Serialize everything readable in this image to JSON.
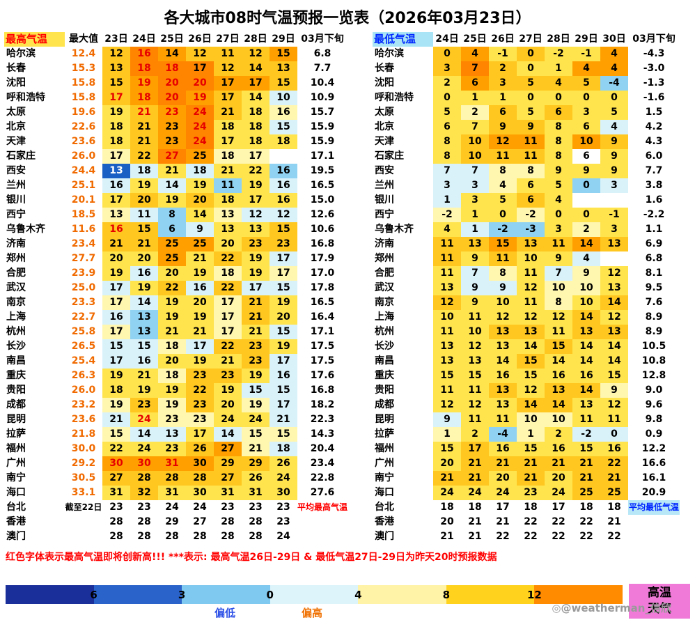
{
  "title": "各大城市08时气温预报一览表（2026年03月23日）",
  "note": "红色字体表示最高气温即将创新高!!! ***表示: 最高气温26日-29日 & 最低气温27日-29日为昨天20时预报数据",
  "watermark": "@weatherman_信欣",
  "hot_badge": {
    "lines": [
      "高温",
      "天气"
    ],
    "bg": "#F07AD8"
  },
  "legend": {
    "segment_colors": [
      "#1B2F9B",
      "#2A63C9",
      "#7FC8EF",
      "#DDF4FB",
      "#FFF3A8",
      "#FFD21E",
      "#FF8C00"
    ],
    "ticks": [
      "6",
      "3",
      "0",
      "4",
      "8",
      "12"
    ],
    "low_label": "偏低",
    "high_label": "偏高"
  },
  "cell_colors": {
    "db": "#1A5FC4",
    "lb": "#8FD2F2",
    "pc": "#D9F2FA",
    "w": "#FFFFFF",
    "py": "#FFF6B0",
    "y": "#FFE44D",
    "g": "#FFC71F",
    "o": "#FFA000",
    "oo": "#FF8400"
  },
  "chart_data": {
    "type": "heatmap",
    "max_table": {
      "header": {
        "label": "最高气温",
        "max_col": "最大值",
        "days": [
          "23日",
          "24日",
          "25日",
          "26日",
          "27日",
          "28日",
          "29日"
        ],
        "period": "03月下旬"
      },
      "rows": [
        {
          "city": "哈尔滨",
          "max": "12.4",
          "cells": [
            "12:g",
            "16:oo:r",
            "14:o",
            "12:g",
            "11:g",
            "12:g",
            "15:o"
          ],
          "avg": "6.8"
        },
        {
          "city": "长春",
          "max": "15.3",
          "cells": [
            "13:g",
            "18:oo:r",
            "18:oo:r",
            "17:oo",
            "12:g",
            "14:g",
            "13:g"
          ],
          "avg": "7.7"
        },
        {
          "city": "沈阳",
          "max": "15.8",
          "cells": [
            "15:g",
            "19:o:r",
            "20:oo:r",
            "20:oo:r",
            "17:o",
            "17:o",
            "15:g"
          ],
          "avg": "10.4"
        },
        {
          "city": "呼和浩特",
          "max": "15.8",
          "cells": [
            "17:g:r",
            "18:o:r",
            "20:oo:r",
            "19:o:r",
            "17:g",
            "14:y",
            "10:pc"
          ],
          "avg": "10.9"
        },
        {
          "city": "太原",
          "max": "19.6",
          "cells": [
            "19:y",
            "21:g:r",
            "23:o:r",
            "24:oo:r",
            "21:g",
            "18:y",
            "16:py"
          ],
          "avg": "15.7"
        },
        {
          "city": "北京",
          "max": "22.6",
          "cells": [
            "18:y",
            "21:g",
            "23:o",
            "24:oo:r",
            "18:y",
            "18:y",
            "15:pc"
          ],
          "avg": "15.9"
        },
        {
          "city": "天津",
          "max": "23.6",
          "cells": [
            "18:y",
            "21:g",
            "23:o",
            "24:oo:r",
            "17:y",
            "18:y",
            "18:y"
          ],
          "avg": "15.9"
        },
        {
          "city": "石家庄",
          "max": "26.0",
          "cells": [
            "17:py",
            "22:g",
            "27:oo:r",
            "25:o",
            "18:py",
            "17:py",
            ":w"
          ],
          "avg": "17.1"
        },
        {
          "city": "西安",
          "max": "24.4",
          "cells": [
            "13:db:w",
            "18:pc",
            "21:y",
            "18:pc",
            "21:y",
            "22:y",
            "16:lb"
          ],
          "avg": "19.5"
        },
        {
          "city": "兰州",
          "max": "25.1",
          "cells": [
            "16:pc",
            "19:y",
            "14:pc",
            "19:y",
            "11:lb",
            "19:y",
            "16:pc"
          ],
          "avg": "16.5"
        },
        {
          "city": "银川",
          "max": "20.1",
          "cells": [
            "17:y",
            "20:g",
            "19:y",
            "20:g",
            "18:y",
            "17:y",
            "16:y"
          ],
          "avg": "15.0"
        },
        {
          "city": "西宁",
          "max": "18.5",
          "cells": [
            "13:py",
            "11:pc",
            "8:lb",
            "14:y",
            "13:py",
            "12:pc",
            "12:pc"
          ],
          "avg": "12.6"
        },
        {
          "city": "乌鲁木齐",
          "max": "11.6",
          "cells": [
            "16:g:r",
            "15:g",
            "6:lb",
            "9:pc",
            "13:y",
            "13:y",
            "15:g"
          ],
          "avg": "10.6"
        },
        {
          "city": "济南",
          "max": "23.4",
          "cells": [
            "21:g",
            "21:g",
            "25:o",
            "25:o",
            "20:y",
            "23:g",
            "23:g"
          ],
          "avg": "16.8"
        },
        {
          "city": "郑州",
          "max": "27.7",
          "cells": [
            "20:y",
            "20:y",
            "25:o",
            "21:y",
            "22:g",
            "19:y",
            "17:pc"
          ],
          "avg": "17.9"
        },
        {
          "city": "合肥",
          "max": "23.9",
          "cells": [
            "19:y",
            "16:pc",
            "20:y",
            "19:y",
            "18:py",
            "19:y",
            "17:py"
          ],
          "avg": "17.0"
        },
        {
          "city": "武汉",
          "max": "25.0",
          "cells": [
            "17:pc",
            "19:y",
            "22:g",
            "16:pc",
            "22:g",
            "17:pc",
            "15:pc"
          ],
          "avg": "17.8"
        },
        {
          "city": "南京",
          "max": "23.3",
          "cells": [
            "17:py",
            "14:pc",
            "19:y",
            "20:y",
            "17:py",
            "21:g",
            "19:y"
          ],
          "avg": "16.5"
        },
        {
          "city": "上海",
          "max": "22.7",
          "cells": [
            "16:pc",
            "13:lb",
            "19:y",
            "19:y",
            "17:py",
            "21:g",
            "20:y"
          ],
          "avg": "16.4"
        },
        {
          "city": "杭州",
          "max": "25.8",
          "cells": [
            "17:py",
            "13:lb",
            "21:y",
            "21:y",
            "17:py",
            "21:y",
            "15:pc"
          ],
          "avg": "17.1"
        },
        {
          "city": "长沙",
          "max": "26.5",
          "cells": [
            "15:pc",
            "15:pc",
            "18:py",
            "17:pc",
            "22:g",
            "23:g",
            "19:y"
          ],
          "avg": "17.5"
        },
        {
          "city": "南昌",
          "max": "25.4",
          "cells": [
            "17:pc",
            "16:pc",
            "20:y",
            "19:y",
            "21:y",
            "23:g",
            "17:pc"
          ],
          "avg": "17.5"
        },
        {
          "city": "重庆",
          "max": "26.3",
          "cells": [
            "19:y",
            "21:y",
            "18:py",
            "23:g",
            "23:g",
            "19:y",
            "16:pc"
          ],
          "avg": "17.6"
        },
        {
          "city": "贵阳",
          "max": "26.0",
          "cells": [
            "18:y",
            "19:y",
            "19:y",
            "22:g",
            "19:y",
            "15:pc",
            "15:pc"
          ],
          "avg": "16.8"
        },
        {
          "city": "成都",
          "max": "23.2",
          "cells": [
            "19:py",
            "23:g",
            "19:py",
            "23:g",
            "20:y",
            "19:py",
            "17:pc"
          ],
          "avg": "18.2"
        },
        {
          "city": "昆明",
          "max": "23.6",
          "cells": [
            "21:pc",
            "24:y:r",
            "23:py",
            "23:py",
            "24:y",
            "24:y",
            "21:pc"
          ],
          "avg": "22.3"
        },
        {
          "city": "拉萨",
          "max": "21.8",
          "cells": [
            "15:py",
            "14:pc",
            "13:pc",
            "17:y",
            "14:pc",
            "15:py",
            "15:py"
          ],
          "avg": "14.3"
        },
        {
          "city": "福州",
          "max": "30.0",
          "cells": [
            "22:y",
            "24:y",
            "23:y",
            "26:g",
            "27:o",
            "21:py",
            "18:pc"
          ],
          "avg": "20.4"
        },
        {
          "city": "广州",
          "max": "29.2",
          "cells": [
            "30:o:r",
            "30:o:r",
            "31:o:r",
            "30:o",
            "29:g",
            "29:g",
            "26:y"
          ],
          "avg": "23.4"
        },
        {
          "city": "南宁",
          "max": "30.5",
          "cells": [
            "27:g",
            "28:g",
            "28:g",
            "28:g",
            "27:g",
            "26:y",
            "24:y"
          ],
          "avg": "22.8"
        },
        {
          "city": "海口",
          "max": "33.1",
          "cells": [
            "31:y",
            "32:g",
            "31:y",
            "30:y",
            "31:y",
            "31:y",
            "30:y"
          ],
          "avg": "27.6"
        },
        {
          "city": "台北",
          "max": "截至22日",
          "small": true,
          "cells": [
            "23:w",
            "23:w",
            "24:w",
            "24:w",
            "23:w",
            "23:w",
            "23:w"
          ],
          "avg": "平均最高气温",
          "avg_style": "red"
        },
        {
          "city": "香港",
          "max": "",
          "cells": [
            "28:w",
            "28:w",
            "29:w",
            "27:w",
            "28:w",
            "28:w",
            "23:w"
          ],
          "avg": ""
        },
        {
          "city": "澳门",
          "max": "",
          "cells": [
            "28:w",
            "28:w",
            "28:w",
            "28:w",
            "28:w",
            "28:w",
            "24:w"
          ],
          "avg": ""
        }
      ]
    },
    "min_table": {
      "header": {
        "label": "最低气温",
        "days": [
          "24日",
          "25日",
          "26日",
          "27日",
          "28日",
          "29日",
          "30日"
        ],
        "period": "03月下旬"
      },
      "rows": [
        {
          "city": "哈尔滨",
          "cells": [
            "0:g",
            "4:o",
            "-1:y",
            "0:g",
            "-2:y",
            "-1:y",
            "4:o"
          ],
          "avg": "-4.3"
        },
        {
          "city": "长春",
          "cells": [
            "3:g",
            "7:oo",
            "2:g",
            "0:y",
            "1:y",
            "4:o",
            "4:o"
          ],
          "avg": "-3.0"
        },
        {
          "city": "沈阳",
          "cells": [
            "2:y",
            "6:o",
            "3:g",
            "5:g",
            "4:g",
            "5:g",
            "-4:lb"
          ],
          "avg": "-1.3"
        },
        {
          "city": "呼和浩特",
          "cells": [
            "0:y",
            "1:y",
            "1:y",
            "0:y",
            "0:y",
            "0:y",
            "0:y"
          ],
          "avg": "-1.6"
        },
        {
          "city": "太原",
          "cells": [
            "5:y",
            "2:py",
            "6:g",
            "5:y",
            "6:g",
            "3:y",
            "5:y"
          ],
          "avg": "1.5"
        },
        {
          "city": "北京",
          "cells": [
            "6:y",
            "7:y",
            "9:g",
            "9:g",
            "8:y",
            "6:y",
            "4:pc"
          ],
          "avg": "4.2"
        },
        {
          "city": "天津",
          "cells": [
            "8:y",
            "10:g",
            "12:o",
            "11:o",
            "8:y",
            "10:o",
            "9:g"
          ],
          "avg": "4.3"
        },
        {
          "city": "石家庄",
          "cells": [
            "8:y",
            "10:g",
            "11:g",
            "11:g",
            "8:y",
            "6:w",
            "9:y"
          ],
          "avg": "6.0"
        },
        {
          "city": "西安",
          "cells": [
            "7:pc",
            "7:pc",
            "8:py",
            "8:py",
            "9:y",
            "9:y",
            "9:y"
          ],
          "avg": "7.7"
        },
        {
          "city": "兰州",
          "cells": [
            "3:pc",
            "3:pc",
            "4:py",
            "6:y",
            "5:y",
            "0:lb",
            "3:pc"
          ],
          "avg": "3.8"
        },
        {
          "city": "银川",
          "cells": [
            "1:pc",
            "3:y",
            "5:y",
            "6:g",
            "4:y",
            ":w",
            ":w"
          ],
          "avg": "1.6"
        },
        {
          "city": "西宁",
          "cells": [
            "-2:py",
            "1:y",
            "0:y",
            "-2:py",
            "0:y",
            "0:y",
            "-1:y"
          ],
          "avg": "-2.2"
        },
        {
          "city": "乌鲁木齐",
          "cells": [
            "4:y",
            "1:pc",
            "-2:lb",
            "-3:lb",
            "3:y",
            "2:py",
            "3:y"
          ],
          "avg": "1.1"
        },
        {
          "city": "济南",
          "cells": [
            "11:g",
            "13:g",
            "15:o",
            "13:g",
            "11:g",
            "14:o",
            "13:g"
          ],
          "avg": "6.9"
        },
        {
          "city": "郑州",
          "cells": [
            "11:g",
            "9:y",
            "11:g",
            "10:y",
            "9:y",
            "4:pc",
            ":w"
          ],
          "avg": "6.8"
        },
        {
          "city": "合肥",
          "cells": [
            "11:y",
            "7:pc",
            "8:py",
            "11:y",
            "7:pc",
            "9:py",
            "12:y"
          ],
          "avg": "8.1"
        },
        {
          "city": "武汉",
          "cells": [
            "13:y",
            "9:pc",
            "9:pc",
            "12:y",
            "10:py",
            "10:py",
            "13:y"
          ],
          "avg": "9.5"
        },
        {
          "city": "南京",
          "cells": [
            "12:g",
            "9:y",
            "10:y",
            "11:y",
            "8:py",
            "10:y",
            "14:g"
          ],
          "avg": "7.6"
        },
        {
          "city": "上海",
          "cells": [
            "10:y",
            "11:y",
            "12:y",
            "12:y",
            "12:y",
            "14:g",
            "12:y"
          ],
          "avg": "8.9"
        },
        {
          "city": "杭州",
          "cells": [
            "11:y",
            "10:y",
            "13:g",
            "13:g",
            "11:y",
            "13:g",
            "13:g"
          ],
          "avg": "8.9"
        },
        {
          "city": "长沙",
          "cells": [
            "13:y",
            "12:y",
            "13:y",
            "14:y",
            "15:g",
            "14:y",
            "14:y"
          ],
          "avg": "10.5"
        },
        {
          "city": "南昌",
          "cells": [
            "13:y",
            "13:y",
            "14:y",
            "15:g",
            "14:y",
            "14:y",
            "14:y"
          ],
          "avg": "10.8"
        },
        {
          "city": "重庆",
          "cells": [
            "15:y",
            "15:y",
            "16:y",
            "15:y",
            "16:y",
            "16:y",
            "15:y"
          ],
          "avg": "12.8"
        },
        {
          "city": "贵阳",
          "cells": [
            "11:y",
            "11:y",
            "13:g",
            "12:y",
            "13:g",
            "14:g",
            "9:py"
          ],
          "avg": "9.0"
        },
        {
          "city": "成都",
          "cells": [
            "12:y",
            "12:y",
            "13:y",
            "14:g",
            "14:g",
            "13:y",
            "12:y"
          ],
          "avg": "9.6"
        },
        {
          "city": "昆明",
          "cells": [
            "9:pc",
            "11:y",
            "11:y",
            "10:py",
            "10:py",
            "11:y",
            "11:y"
          ],
          "avg": "9.8"
        },
        {
          "city": "拉萨",
          "cells": [
            "1:py",
            "2:y",
            "-4:lb",
            "1:py",
            "2:y",
            "-2:pc",
            "0:pc"
          ],
          "avg": "0.9"
        },
        {
          "city": "福州",
          "cells": [
            "15:y",
            "17:g",
            "16:y",
            "15:y",
            "16:y",
            "15:y",
            "16:y"
          ],
          "avg": "12.2"
        },
        {
          "city": "广州",
          "cells": [
            "20:y",
            "21:g",
            "21:g",
            "21:g",
            "21:g",
            "21:g",
            "22:g"
          ],
          "avg": "16.6"
        },
        {
          "city": "南宁",
          "cells": [
            "21:g",
            "21:g",
            "20:y",
            "21:g",
            "20:y",
            "21:g",
            "21:g"
          ],
          "avg": "16.1"
        },
        {
          "city": "海口",
          "cells": [
            "24:y",
            "24:y",
            "24:y",
            "23:y",
            "24:y",
            "25:g",
            "25:g"
          ],
          "avg": "20.9"
        },
        {
          "city": "台北",
          "cells": [
            "18:w",
            "18:w",
            "17:w",
            "18:w",
            "17:w",
            "18:w",
            "18:w"
          ],
          "avg": "平均最低气温",
          "avg_style": "blue"
        },
        {
          "city": "香港",
          "cells": [
            "20:w",
            "21:w",
            "21:w",
            "22:w",
            "22:w",
            "22:w",
            "21:w"
          ],
          "avg": ""
        },
        {
          "city": "澳门",
          "cells": [
            "21:w",
            "21:w",
            "22:w",
            "22:w",
            "22:w",
            "22:w",
            "22:w"
          ],
          "avg": ""
        }
      ]
    }
  }
}
